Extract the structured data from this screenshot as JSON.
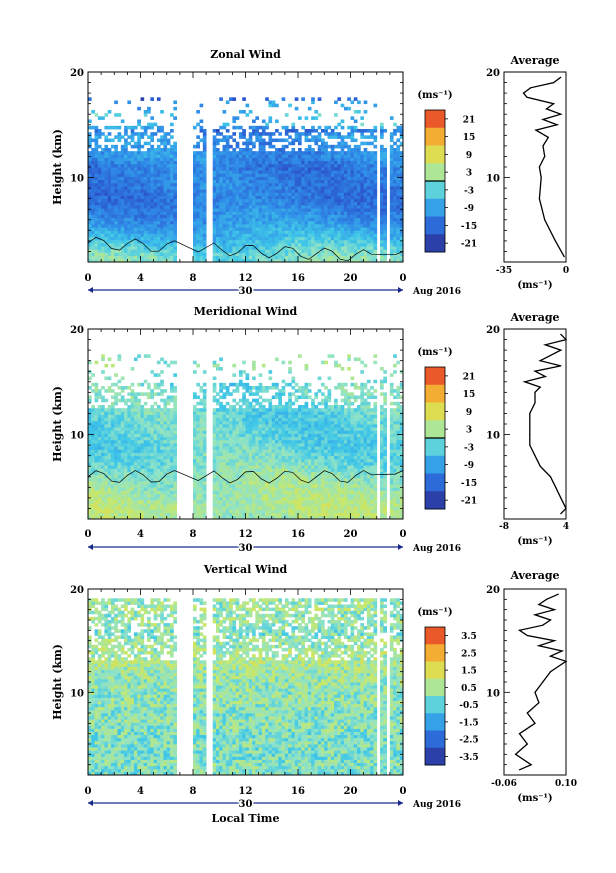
{
  "chart_data": [
    {
      "type": "heatmap",
      "title": "Zonal Wind",
      "xlabel": "",
      "ylabel": "Height (km)",
      "xlim": [
        0,
        24
      ],
      "ylim": [
        2,
        20
      ],
      "x_ticks": [
        "0",
        "4",
        "8",
        "12",
        "16",
        "20",
        "0"
      ],
      "y_ticks": [
        "20",
        "10"
      ],
      "date_bar_label": "30",
      "date_text": "Aug 2016",
      "colorbar": {
        "unit": "(ms⁻¹)",
        "range": [
          -24,
          24
        ],
        "ticks": [
          "21",
          "15",
          "9",
          "3",
          "-3",
          "-9",
          "-15",
          "-21"
        ],
        "zero_line": 0
      },
      "profile": {
        "title": "Average",
        "xlim": [
          -35,
          0
        ],
        "x_ticks": [
          "-35",
          "0"
        ],
        "y_ticks": [
          "20",
          "10"
        ],
        "unit": "(ms⁻¹)",
        "heights": [
          2.5,
          4,
          6,
          8,
          10,
          11,
          12,
          13,
          13.8,
          14.5,
          15,
          15.5,
          16,
          16.5,
          17,
          17.6,
          18,
          18.5,
          19,
          19.5
        ],
        "values": [
          -1,
          -6,
          -12,
          -15,
          -14,
          -15,
          -12,
          -13,
          -10,
          -17,
          -5,
          -13,
          -3,
          -11,
          -7,
          -22,
          -24,
          -20,
          -7,
          -3
        ]
      },
      "gap_hours": [
        [
          6.8,
          7.9
        ],
        [
          8.9,
          9.5
        ],
        [
          22.1,
          22.3
        ],
        [
          22.7,
          22.9
        ]
      ],
      "data_top_km": 17.5
    },
    {
      "type": "heatmap",
      "title": "Meridional Wind",
      "xlabel": "",
      "ylabel": "Height (km)",
      "xlim": [
        0,
        24
      ],
      "ylim": [
        2,
        20
      ],
      "x_ticks": [
        "0",
        "4",
        "8",
        "12",
        "16",
        "20",
        "0"
      ],
      "y_ticks": [
        "20",
        "10"
      ],
      "date_bar_label": "30",
      "date_text": "Aug 2016",
      "colorbar": {
        "unit": "(ms⁻¹)",
        "range": [
          -24,
          24
        ],
        "ticks": [
          "21",
          "15",
          "9",
          "3",
          "-3",
          "-9",
          "-15",
          "-21"
        ],
        "zero_line": 0
      },
      "profile": {
        "title": "Average",
        "xlim": [
          -8,
          4
        ],
        "x_ticks": [
          "-8",
          "4"
        ],
        "y_ticks": [
          "20",
          "10"
        ],
        "unit": "(ms⁻¹)",
        "heights": [
          2.5,
          3,
          4,
          5,
          6,
          7,
          8,
          9,
          10,
          11,
          12,
          13,
          14,
          14.5,
          15,
          15.5,
          16,
          16.5,
          17,
          17.5,
          18,
          18.5,
          19,
          19.5
        ],
        "values": [
          3,
          4,
          3,
          2,
          1,
          -1,
          -2,
          -3,
          -3,
          -3,
          -3,
          -2,
          -2,
          -1,
          -4,
          0,
          -2,
          3,
          -1,
          1,
          3,
          0,
          4,
          3
        ]
      },
      "gap_hours": [
        [
          6.8,
          7.9
        ],
        [
          8.9,
          9.5
        ],
        [
          22.1,
          22.3
        ],
        [
          22.7,
          22.9
        ]
      ],
      "data_top_km": 17.5
    },
    {
      "type": "heatmap",
      "title": "Vertical Wind",
      "xlabel": "Local Time",
      "ylabel": "Height (km)",
      "xlim": [
        0,
        24
      ],
      "ylim": [
        2,
        20
      ],
      "x_ticks": [
        "0",
        "4",
        "8",
        "12",
        "16",
        "20",
        "0"
      ],
      "y_ticks": [
        "20",
        "10"
      ],
      "date_bar_label": "30",
      "date_text": "Aug 2016",
      "colorbar": {
        "unit": "(ms⁻¹)",
        "range": [
          -4,
          4
        ],
        "ticks": [
          "3.5",
          "2.5",
          "1.5",
          "0.5",
          "-0.5",
          "-1.5",
          "-2.5",
          "-3.5"
        ],
        "zero_line": null
      },
      "profile": {
        "title": "Average",
        "xlim": [
          -0.06,
          0.1
        ],
        "x_ticks": [
          "-0.06",
          "0.10"
        ],
        "y_ticks": [
          "20",
          "10"
        ],
        "unit": "(ms⁻¹)",
        "heights": [
          2.5,
          3,
          4,
          5,
          6,
          7,
          8,
          9,
          10,
          11,
          12,
          12.5,
          13,
          13.5,
          14,
          14.5,
          15,
          15.5,
          16,
          16.5,
          17,
          17.5,
          18,
          18.5,
          19,
          19.5
        ],
        "values": [
          -0.02,
          0.01,
          -0.03,
          0.0,
          -0.02,
          0.02,
          0.0,
          0.03,
          0.02,
          0.04,
          0.06,
          0.08,
          0.1,
          0.06,
          0.09,
          0.03,
          0.07,
          0.0,
          -0.02,
          0.04,
          0.06,
          0.02,
          0.07,
          0.03,
          0.05,
          0.08
        ]
      },
      "gap_hours": [
        [
          6.8,
          7.9
        ],
        [
          8.9,
          9.5
        ],
        [
          22.1,
          22.3
        ],
        [
          22.7,
          22.9
        ]
      ],
      "data_top_km": 19.2
    }
  ]
}
